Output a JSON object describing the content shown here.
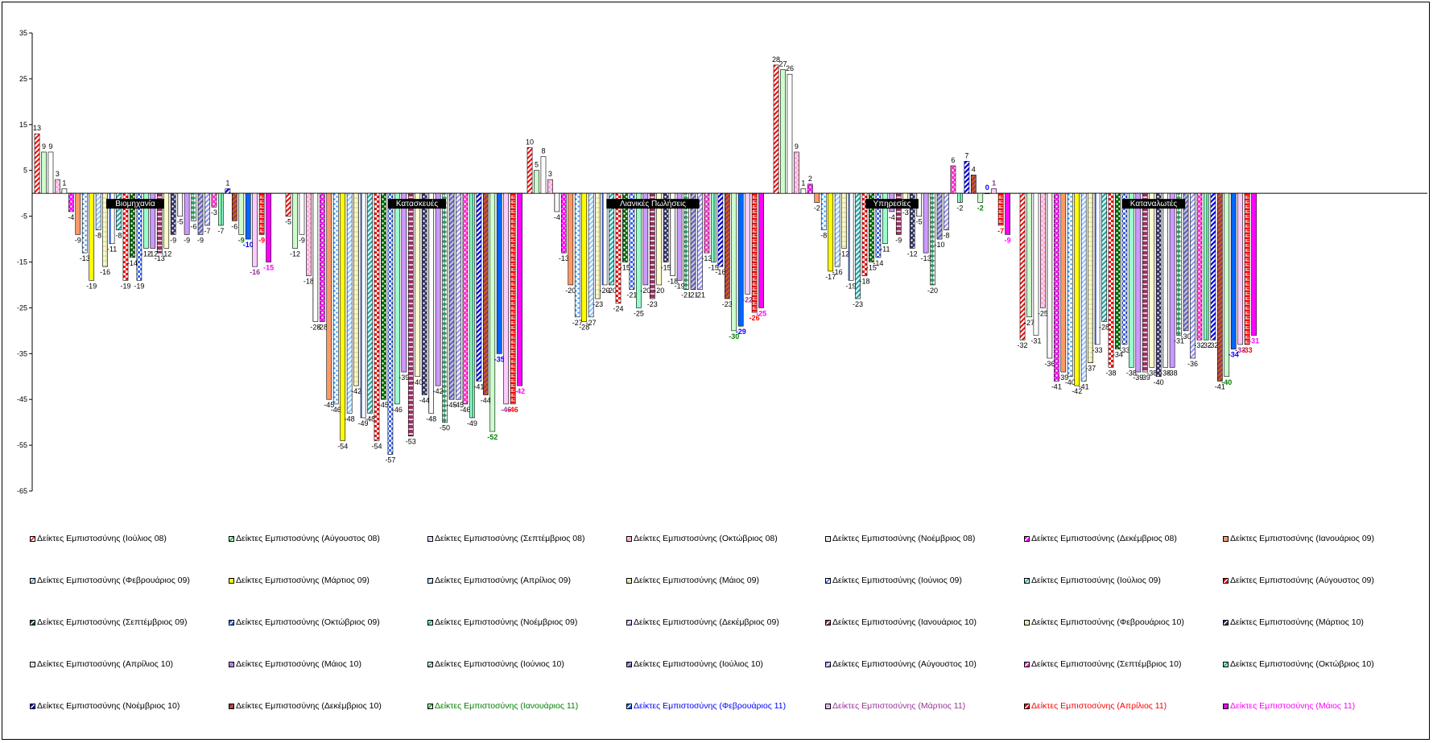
{
  "chart_data": {
    "type": "bar",
    "ylim": [
      -65,
      35
    ],
    "yticks": [
      35,
      25,
      15,
      5,
      -5,
      -15,
      -25,
      -35,
      -45,
      -55,
      -65
    ],
    "categories": [
      "Βιομηχανία",
      "Κατασκευές",
      "Λιανικές Πωλήσεις",
      "Υπηρεσίες",
      "Καταναλωτές"
    ],
    "series": [
      {
        "name": "Δείκτες Εμπιστοσύνης (Ιούλιος 08)",
        "values": [
          13,
          -5,
          10,
          28,
          -32
        ]
      },
      {
        "name": "Δείκτες Εμπιστοσύνης (Αύγουστος 08)",
        "values": [
          9,
          -12,
          5,
          27,
          -27
        ]
      },
      {
        "name": "Δείκτες Εμπιστοσύνης (Σεπτέμβριος 08)",
        "values": [
          9,
          -9,
          8,
          26,
          -31
        ]
      },
      {
        "name": "Δείκτες Εμπιστοσύνης (Οκτώβριος 08)",
        "values": [
          3,
          -18,
          3,
          9,
          -25
        ]
      },
      {
        "name": "Δείκτες Εμπιστοσύνης (Νοέμβριος 08)",
        "values": [
          1,
          -28,
          -4,
          1,
          -36
        ]
      },
      {
        "name": "Δείκτες Εμπιστοσύνης (Δεκέμβριος 08)",
        "values": [
          -4,
          -28,
          -13,
          2,
          -41
        ]
      },
      {
        "name": "Δείκτες Εμπιστοσύνης (Ιανουάριος 09)",
        "values": [
          -9,
          -45,
          -20,
          -2,
          -39
        ]
      },
      {
        "name": "Δείκτες Εμπιστοσύνης (Φεβρουάριος 09)",
        "values": [
          -13,
          -46,
          -27,
          -8,
          -40
        ]
      },
      {
        "name": "Δείκτες Εμπιστοσύνης (Μάρτιος 09)",
        "values": [
          -19,
          -54,
          -28,
          -17,
          -42
        ]
      },
      {
        "name": "Δείκτες Εμπιστοσύνης (Απρίλιος 09)",
        "values": [
          -8,
          -48,
          -27,
          -16,
          -41
        ]
      },
      {
        "name": "Δείκτες Εμπιστοσύνης (Μάιος 09)",
        "values": [
          -16,
          -42,
          -23,
          -12,
          -37
        ]
      },
      {
        "name": "Δείκτες Εμπιστοσύνης (Ιούνιος 09)",
        "values": [
          -11,
          -49,
          -20,
          -19,
          -33
        ]
      },
      {
        "name": "Δείκτες Εμπιστοσύνης (Ιούλιος 09)",
        "values": [
          -8,
          -48,
          -20,
          -23,
          -28
        ]
      },
      {
        "name": "Δείκτες Εμπιστοσύνης (Αύγουστος 09)",
        "values": [
          -19,
          -54,
          -24,
          -18,
          -38
        ]
      },
      {
        "name": "Δείκτες Εμπιστοσύνης (Σεπτέμβριος 09)",
        "values": [
          -14,
          -45,
          -15,
          -15,
          -34
        ]
      },
      {
        "name": "Δείκτες Εμπιστοσύνης (Οκτώβριος 09)",
        "values": [
          -19,
          -57,
          -21,
          -14,
          -33
        ]
      },
      {
        "name": "Δείκτες Εμπιστοσύνης (Νοέμβριος 09)",
        "values": [
          -12,
          -46,
          -25,
          -11,
          -38
        ]
      },
      {
        "name": "Δείκτες Εμπιστοσύνης (Δεκέμβριος 09)",
        "values": [
          -12,
          -39,
          -20,
          -4,
          -39
        ]
      },
      {
        "name": "Δείκτες Εμπιστοσύνης (Ιανουάριος 10)",
        "values": [
          -13,
          -53,
          -23,
          -9,
          -39
        ]
      },
      {
        "name": "Δείκτες Εμπιστοσύνης (Φεβρουάριος 10)",
        "values": [
          -12,
          -40,
          -20,
          -3,
          -38
        ]
      },
      {
        "name": "Δείκτες Εμπιστοσύνης (Μάρτιος 10)",
        "values": [
          -9,
          -44,
          -15,
          -12,
          -40
        ]
      },
      {
        "name": "Δείκτες Εμπιστοσύνης (Απρίλιος 10)",
        "values": [
          -5,
          -48,
          -18,
          -5,
          -38
        ]
      },
      {
        "name": "Δείκτες Εμπιστοσύνης (Μάιος 10)",
        "values": [
          -9,
          -42,
          -19,
          -13,
          -38
        ]
      },
      {
        "name": "Δείκτες Εμπιστοσύνης (Ιούνιος 10)",
        "values": [
          -6,
          -50,
          -21,
          -20,
          -31
        ]
      },
      {
        "name": "Δείκτες Εμπιστοσύνης (Ιούλιος 10)",
        "values": [
          -9,
          -45,
          -21,
          -10,
          -30
        ]
      },
      {
        "name": "Δείκτες Εμπιστοσύνης (Αύγουστος 10)",
        "values": [
          -7,
          -45,
          -21,
          -8,
          -36
        ]
      },
      {
        "name": "Δείκτες Εμπιστοσύνης (Σεπτέμβριος 10)",
        "values": [
          -3,
          -46,
          -13,
          6,
          -32
        ]
      },
      {
        "name": "Δείκτες Εμπιστοσύνης (Οκτώβριος 10)",
        "values": [
          -7,
          -49,
          -15,
          -2,
          -32
        ]
      },
      {
        "name": "Δείκτες Εμπιστοσύνης (Νοέμβριος 10)",
        "values": [
          1,
          -41,
          -16,
          7,
          -32
        ]
      },
      {
        "name": "Δείκτες Εμπιστοσύνης (Δεκέμβριος 10)",
        "values": [
          -6,
          -44,
          -23,
          4,
          -41
        ]
      },
      {
        "name": "Δείκτες Εμπιστοσύνης (Ιανουάριος 11)",
        "values": [
          -9,
          -52,
          -30,
          -2,
          -40
        ]
      },
      {
        "name": "Δείκτες Εμπιστοσύνης (Φεβρουάριος 11)",
        "values": [
          -10,
          -35,
          -29,
          0,
          -34
        ]
      },
      {
        "name": "Δείκτες Εμπιστοσύνης (Μάρτιος 11)",
        "values": [
          -16,
          -46,
          -22,
          1,
          -33
        ]
      },
      {
        "name": "Δείκτες Εμπιστοσύνης (Απρίλιος 11)",
        "values": [
          -9,
          -46,
          -26,
          -7,
          -33
        ]
      },
      {
        "name": "Δείκτες Εμπιστοσύνης (Μάιος 11)",
        "values": [
          -15,
          -42,
          -25,
          -9,
          -31
        ]
      }
    ],
    "colors": {
      "green": "#008000",
      "blue": "#0000ff",
      "purple": "#993399",
      "red": "#ff0000",
      "magenta": "#ff00ff"
    }
  }
}
